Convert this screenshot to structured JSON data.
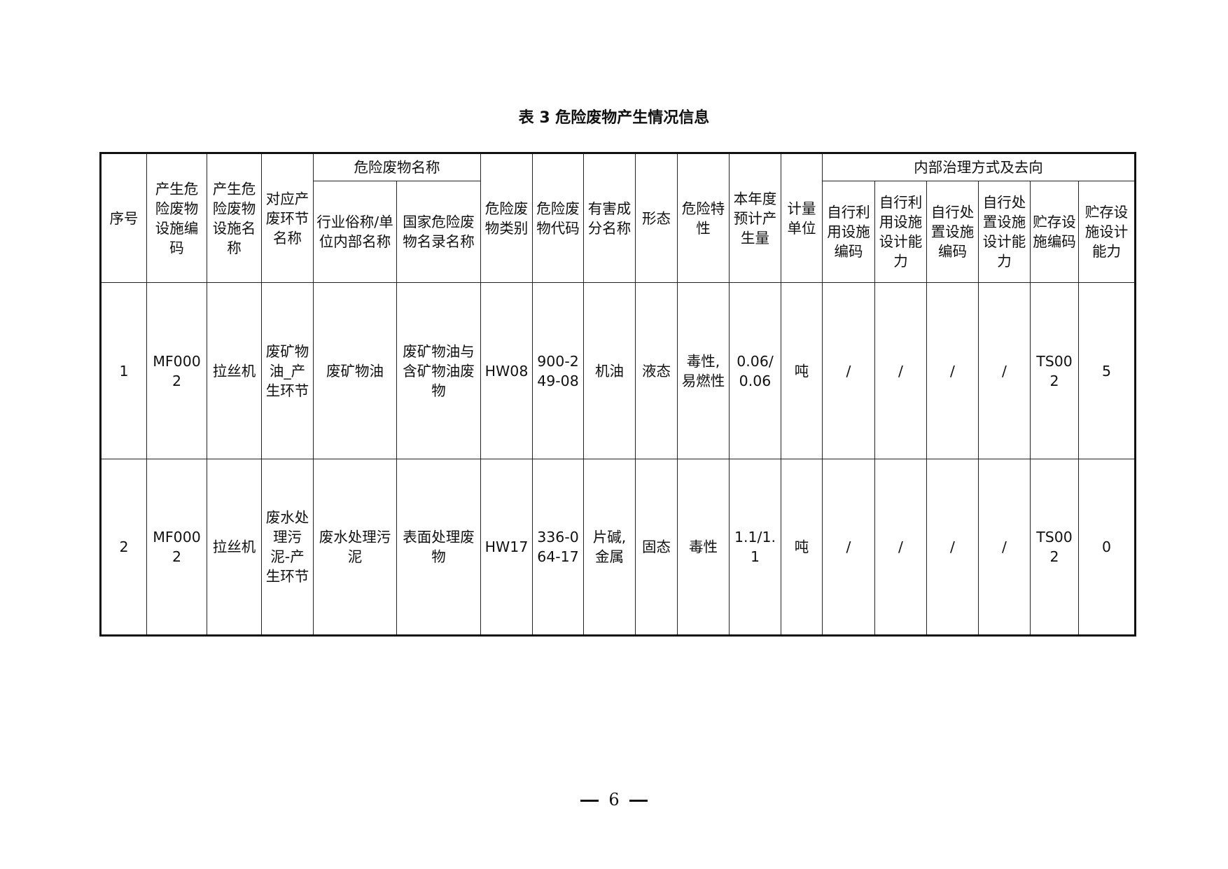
{
  "title": "表 3  危险废物产生情况信息",
  "headers": {
    "seq": "序号",
    "facility_code": "产生危险废物设施编码",
    "facility_name": "产生危险废物设施名称",
    "process": "对应产废环节名称",
    "waste_name_group": "危险废物名称",
    "common_name": "行业俗称/单位内部名称",
    "national_name": "国家危险废物名录名称",
    "category": "危险废物类别",
    "code": "危险废物代码",
    "harmful": "有害成分名称",
    "form": "形态",
    "property": "危险特性",
    "amount": "本年度预计产生量",
    "unit": "计量单位",
    "internal_group": "内部治理方式及去向",
    "reuse_code": "自行利用设施编码",
    "reuse_capacity": "自行利用设施设计能力",
    "dispose_code": "自行处置设施编码",
    "dispose_capacity": "自行处置设施设计能力",
    "storage_code": "贮存设施编码",
    "storage_capacity": "贮存设施设计能力"
  },
  "rows": [
    [
      "1",
      "MF0002",
      "拉丝机",
      "废矿物油_产生环节",
      "废矿物油",
      "废矿物油与含矿物油废物",
      "HW08",
      "900-249-08",
      "机油",
      "液态",
      "毒性,易燃性",
      "0.06/0.06",
      "吨",
      "/",
      "/",
      "/",
      "/",
      "TS002",
      "5"
    ],
    [
      "2",
      "MF0002",
      "拉丝机",
      "废水处理污泥-产生环节",
      "废水处理污泥",
      "表面处理废物",
      "HW17",
      "336-064-17",
      "片碱,金属",
      "固态",
      "毒性",
      "1.1/1.1",
      "吨",
      "/",
      "/",
      "/",
      "/",
      "TS002",
      "0"
    ]
  ],
  "page_number": "6"
}
